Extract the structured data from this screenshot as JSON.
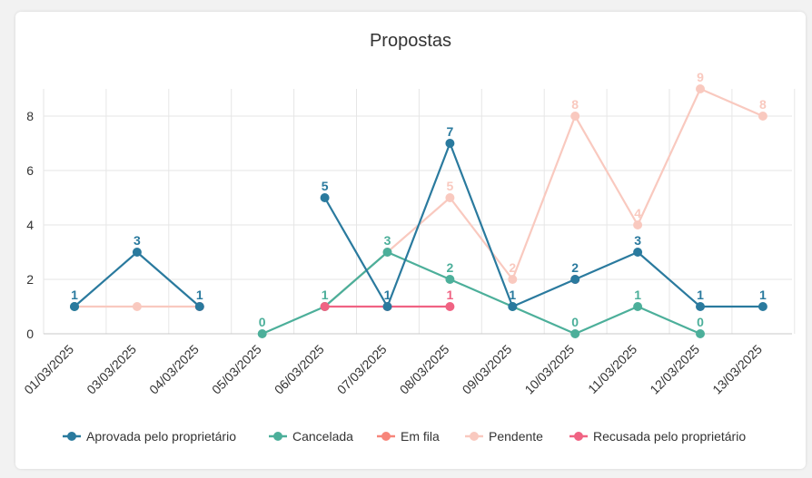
{
  "chart_data": {
    "type": "line",
    "title": "Propostas",
    "categories": [
      "01/03/2025",
      "03/03/2025",
      "04/03/2025",
      "05/03/2025",
      "06/03/2025",
      "07/03/2025",
      "08/03/2025",
      "09/03/2025",
      "10/03/2025",
      "11/03/2025",
      "12/03/2025",
      "13/03/2025"
    ],
    "yticks": [
      "0",
      "2",
      "4",
      "6",
      "8"
    ],
    "ylim": [
      0,
      9
    ],
    "grid": true,
    "legend_position": "bottom",
    "series": [
      {
        "name": "Pendente",
        "color": "#f9c9bf",
        "values": [
          1,
          1,
          1,
          null,
          1,
          3,
          5,
          2,
          8,
          4,
          9,
          8
        ],
        "labels": [
          null,
          null,
          null,
          null,
          null,
          null,
          "5",
          "2",
          "8",
          "4",
          "9",
          "8"
        ]
      },
      {
        "name": "Cancelada",
        "color": "#4caf9a",
        "values": [
          1,
          null,
          null,
          0,
          1,
          3,
          2,
          1,
          0,
          1,
          0,
          null
        ],
        "labels": [
          null,
          null,
          null,
          "0",
          "1",
          "3",
          "2",
          null,
          "0",
          "1",
          "0",
          null
        ]
      },
      {
        "name": "Em fila",
        "color": "#f7857a",
        "values": [
          null,
          null,
          null,
          null,
          null,
          null,
          null,
          null,
          null,
          null,
          null,
          null
        ],
        "labels": [
          null,
          null,
          null,
          null,
          null,
          null,
          null,
          null,
          null,
          null,
          null,
          null
        ]
      },
      {
        "name": "Recusada pelo proprietário",
        "color": "#f06383",
        "values": [
          null,
          null,
          1,
          null,
          1,
          1,
          1,
          null,
          2,
          null,
          null,
          null
        ],
        "labels": [
          null,
          null,
          null,
          null,
          null,
          null,
          "1",
          null,
          null,
          null,
          null,
          null
        ]
      },
      {
        "name": "Aprovada pelo proprietário",
        "color": "#2a7a9e",
        "values": [
          1,
          3,
          1,
          null,
          5,
          1,
          7,
          1,
          2,
          3,
          1,
          1
        ],
        "labels": [
          "1",
          "3",
          "1",
          null,
          "5",
          "1",
          "7",
          "1",
          "2",
          "3",
          "1",
          "1"
        ]
      }
    ],
    "legend": [
      "Aprovada pelo proprietário",
      "Cancelada",
      "Em fila",
      "Pendente",
      "Recusada pelo proprietário"
    ]
  }
}
